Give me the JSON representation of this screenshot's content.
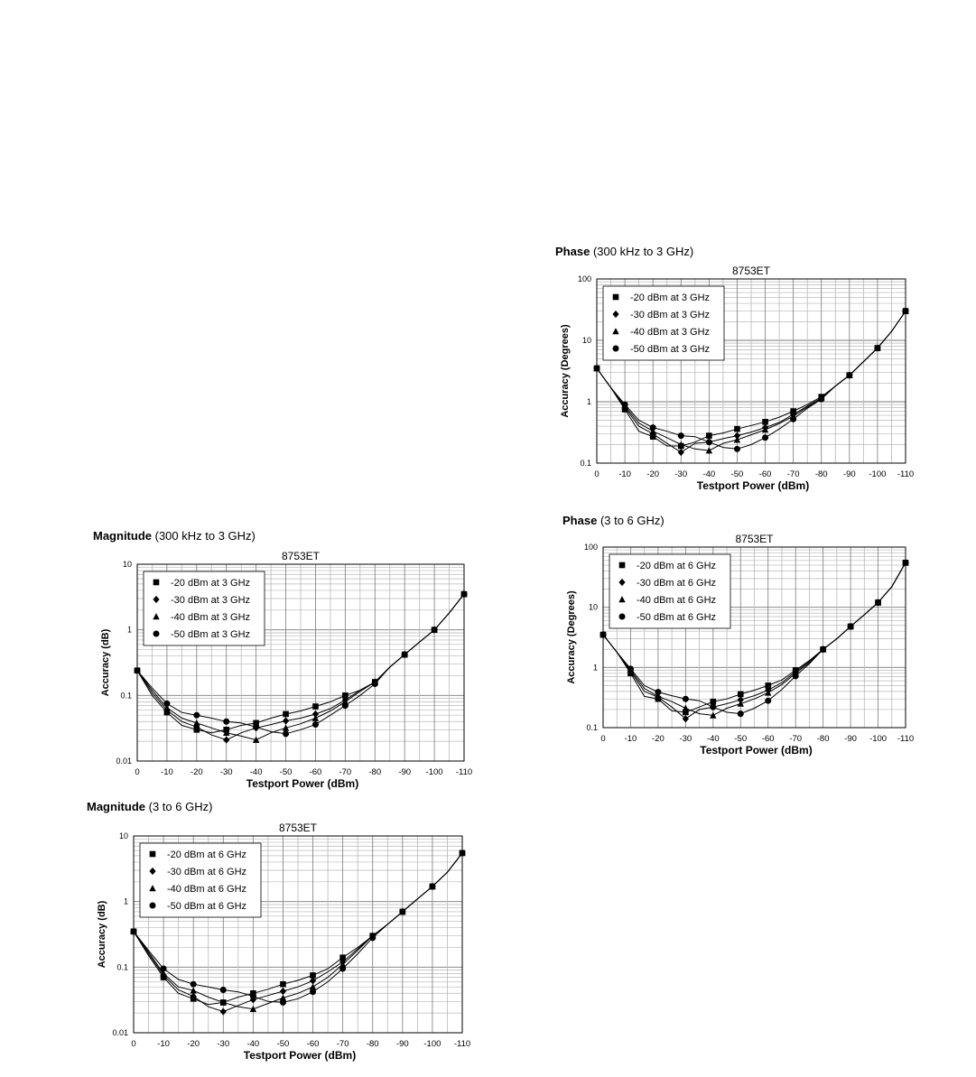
{
  "colors": {
    "ink": "#000000",
    "grid": "#7a7a7a",
    "minor_grid": "#b8b8b8",
    "legend_bg": "#ffffff"
  },
  "chart_data": [
    {
      "id": "phase-3ghz",
      "type": "line",
      "heading_bold": "Phase",
      "heading_rest": "(300 kHz to 3 GHz)",
      "title": "8753ET",
      "xlabel": "Testport Power (dBm)",
      "ylabel": "Accuracy (Degrees)",
      "y_scale": "log",
      "ylim": [
        0.1,
        100
      ],
      "y_ticks": [
        "100",
        "10",
        "1",
        "0.1"
      ],
      "xlim": [
        0,
        -110
      ],
      "x_ticks": [
        "0",
        "-10",
        "-20",
        "-30",
        "-40",
        "-50",
        "-60",
        "-70",
        "-80",
        "-90",
        "-100",
        "-110"
      ],
      "grid": true,
      "legend_position": "top-left",
      "series": [
        {
          "name": "-20 dBm at 3 GHz",
          "marker": "square",
          "x": [
            0,
            -5,
            -10,
            -15,
            -20,
            -25,
            -30,
            -35,
            -40,
            -45,
            -50,
            -55,
            -60,
            -65,
            -70,
            -75,
            -80,
            -85,
            -90,
            -95,
            -100,
            -105,
            -110
          ],
          "y": [
            3.5,
            1.7,
            0.75,
            0.33,
            0.27,
            0.19,
            0.19,
            0.22,
            0.28,
            0.31,
            0.36,
            0.41,
            0.47,
            0.56,
            0.7,
            0.9,
            1.2,
            1.8,
            2.7,
            4.5,
            7.5,
            14,
            30
          ]
        },
        {
          "name": "-30 dBm at 3 GHz",
          "marker": "diamond",
          "x": [
            0,
            -5,
            -10,
            -15,
            -20,
            -25,
            -30,
            -35,
            -40,
            -45,
            -50,
            -55,
            -60,
            -65,
            -70,
            -75,
            -80,
            -85,
            -90,
            -95,
            -100,
            -105,
            -110
          ],
          "y": [
            3.5,
            1.7,
            0.8,
            0.4,
            0.3,
            0.21,
            0.15,
            0.21,
            0.22,
            0.25,
            0.28,
            0.32,
            0.38,
            0.46,
            0.62,
            0.85,
            1.15,
            1.8,
            2.7,
            4.5,
            7.5,
            14,
            30
          ]
        },
        {
          "name": "-40 dBm at 3 GHz",
          "marker": "triangle",
          "x": [
            0,
            -5,
            -10,
            -15,
            -20,
            -25,
            -30,
            -35,
            -40,
            -45,
            -50,
            -55,
            -60,
            -65,
            -70,
            -75,
            -80,
            -85,
            -90,
            -95,
            -100,
            -105,
            -110
          ],
          "y": [
            3.5,
            1.7,
            0.85,
            0.45,
            0.33,
            0.26,
            0.2,
            0.17,
            0.16,
            0.21,
            0.24,
            0.29,
            0.35,
            0.44,
            0.58,
            0.82,
            1.15,
            1.8,
            2.7,
            4.5,
            7.5,
            14,
            30
          ]
        },
        {
          "name": "-50 dBm at 3 GHz",
          "marker": "circle",
          "x": [
            0,
            -5,
            -10,
            -15,
            -20,
            -25,
            -30,
            -35,
            -40,
            -45,
            -50,
            -55,
            -60,
            -65,
            -70,
            -75,
            -80,
            -85,
            -90,
            -95,
            -100,
            -105,
            -110
          ],
          "y": [
            3.5,
            1.7,
            0.9,
            0.5,
            0.38,
            0.33,
            0.28,
            0.27,
            0.22,
            0.18,
            0.17,
            0.2,
            0.26,
            0.36,
            0.52,
            0.78,
            1.1,
            1.8,
            2.7,
            4.5,
            7.5,
            14,
            30
          ]
        }
      ]
    },
    {
      "id": "phase-6ghz",
      "type": "line",
      "heading_bold": "Phase",
      "heading_rest": "(3 to 6 GHz)",
      "title": "8753ET",
      "xlabel": "Testport Power (dBm)",
      "ylabel": "Accuracy (Degrees)",
      "y_scale": "log",
      "ylim": [
        0.1,
        100
      ],
      "y_ticks": [
        "100",
        "10",
        "1",
        "0.1"
      ],
      "xlim": [
        0,
        -110
      ],
      "x_ticks": [
        "0",
        "-10",
        "-20",
        "-30",
        "-40",
        "-50",
        "-60",
        "-70",
        "-80",
        "-90",
        "-100",
        "-110"
      ],
      "grid": true,
      "legend_position": "top-left",
      "series": [
        {
          "name": "-20 dBm at 6 GHz",
          "marker": "square",
          "x": [
            0,
            -5,
            -10,
            -15,
            -20,
            -25,
            -30,
            -35,
            -40,
            -45,
            -50,
            -55,
            -60,
            -65,
            -70,
            -75,
            -80,
            -85,
            -90,
            -95,
            -100,
            -105,
            -110
          ],
          "y": [
            3.5,
            1.8,
            0.8,
            0.33,
            0.3,
            0.19,
            0.18,
            0.22,
            0.27,
            0.3,
            0.36,
            0.42,
            0.5,
            0.62,
            0.9,
            1.3,
            2.0,
            3.0,
            4.8,
            7.5,
            12,
            22,
            55
          ]
        },
        {
          "name": "-30 dBm at 6 GHz",
          "marker": "diamond",
          "x": [
            0,
            -5,
            -10,
            -15,
            -20,
            -25,
            -30,
            -35,
            -40,
            -45,
            -50,
            -55,
            -60,
            -65,
            -70,
            -75,
            -80,
            -85,
            -90,
            -95,
            -100,
            -105,
            -110
          ],
          "y": [
            3.5,
            1.8,
            0.85,
            0.4,
            0.32,
            0.22,
            0.14,
            0.2,
            0.22,
            0.25,
            0.29,
            0.34,
            0.42,
            0.56,
            0.85,
            1.25,
            2.0,
            3.0,
            4.8,
            7.5,
            12,
            22,
            55
          ]
        },
        {
          "name": "-40 dBm at 6 GHz",
          "marker": "triangle",
          "x": [
            0,
            -5,
            -10,
            -15,
            -20,
            -25,
            -30,
            -35,
            -40,
            -45,
            -50,
            -55,
            -60,
            -65,
            -70,
            -75,
            -80,
            -85,
            -90,
            -95,
            -100,
            -105,
            -110
          ],
          "y": [
            3.5,
            1.8,
            0.9,
            0.45,
            0.33,
            0.27,
            0.21,
            0.17,
            0.16,
            0.21,
            0.25,
            0.3,
            0.38,
            0.52,
            0.8,
            1.2,
            2.0,
            3.0,
            4.8,
            7.5,
            12,
            22,
            55
          ]
        },
        {
          "name": "-50 dBm at 6 GHz",
          "marker": "circle",
          "x": [
            0,
            -5,
            -10,
            -15,
            -20,
            -25,
            -30,
            -35,
            -40,
            -45,
            -50,
            -55,
            -60,
            -65,
            -70,
            -75,
            -80,
            -85,
            -90,
            -95,
            -100,
            -105,
            -110
          ],
          "y": [
            3.5,
            1.8,
            0.95,
            0.5,
            0.39,
            0.34,
            0.3,
            0.28,
            0.22,
            0.18,
            0.17,
            0.21,
            0.28,
            0.43,
            0.72,
            1.15,
            2.0,
            3.0,
            4.8,
            7.5,
            12,
            22,
            55
          ]
        }
      ]
    },
    {
      "id": "magnitude-3ghz",
      "type": "line",
      "heading_bold": "Magnitude",
      "heading_rest": "(300 kHz to 3 GHz)",
      "title": "8753ET",
      "xlabel": "Testport Power (dBm)",
      "ylabel": "Accuracy (dB)",
      "y_scale": "log",
      "ylim": [
        0.01,
        10
      ],
      "y_ticks": [
        "10",
        "1",
        "0.1",
        "0.01"
      ],
      "xlim": [
        0,
        -110
      ],
      "x_ticks": [
        "0",
        "-10",
        "-20",
        "-30",
        "-40",
        "-50",
        "-60",
        "-70",
        "-80",
        "-90",
        "-100",
        "-110"
      ],
      "grid": true,
      "legend_position": "top-left",
      "series": [
        {
          "name": "-20 dBm at 3 GHz",
          "marker": "square",
          "x": [
            0,
            -5,
            -10,
            -15,
            -20,
            -25,
            -30,
            -35,
            -40,
            -45,
            -50,
            -55,
            -60,
            -65,
            -70,
            -75,
            -80,
            -85,
            -90,
            -95,
            -100,
            -105,
            -110
          ],
          "y": [
            0.24,
            0.1,
            0.055,
            0.035,
            0.03,
            0.027,
            0.03,
            0.035,
            0.038,
            0.045,
            0.052,
            0.058,
            0.068,
            0.08,
            0.1,
            0.12,
            0.16,
            0.27,
            0.42,
            0.65,
            1.0,
            1.8,
            3.5
          ]
        },
        {
          "name": "-30 dBm at 3 GHz",
          "marker": "diamond",
          "x": [
            0,
            -5,
            -10,
            -15,
            -20,
            -25,
            -30,
            -35,
            -40,
            -45,
            -50,
            -55,
            -60,
            -65,
            -70,
            -75,
            -80,
            -85,
            -90,
            -95,
            -100,
            -105,
            -110
          ],
          "y": [
            0.24,
            0.11,
            0.06,
            0.04,
            0.033,
            0.025,
            0.021,
            0.027,
            0.032,
            0.036,
            0.041,
            0.045,
            0.052,
            0.063,
            0.085,
            0.12,
            0.16,
            0.27,
            0.42,
            0.65,
            1.0,
            1.8,
            3.5
          ]
        },
        {
          "name": "-40 dBm at 3 GHz",
          "marker": "triangle",
          "x": [
            0,
            -5,
            -10,
            -15,
            -20,
            -25,
            -30,
            -35,
            -40,
            -45,
            -50,
            -55,
            -60,
            -65,
            -70,
            -75,
            -80,
            -85,
            -90,
            -95,
            -100,
            -105,
            -110
          ],
          "y": [
            0.24,
            0.12,
            0.065,
            0.045,
            0.038,
            0.032,
            0.027,
            0.024,
            0.021,
            0.027,
            0.032,
            0.037,
            0.045,
            0.058,
            0.08,
            0.115,
            0.16,
            0.27,
            0.42,
            0.65,
            1.0,
            1.8,
            3.5
          ]
        },
        {
          "name": "-50 dBm at 3 GHz",
          "marker": "circle",
          "x": [
            0,
            -5,
            -10,
            -15,
            -20,
            -25,
            -30,
            -35,
            -40,
            -45,
            -50,
            -55,
            -60,
            -65,
            -70,
            -75,
            -80,
            -85,
            -90,
            -95,
            -100,
            -105,
            -110
          ],
          "y": [
            0.24,
            0.13,
            0.075,
            0.055,
            0.05,
            0.045,
            0.04,
            0.038,
            0.033,
            0.028,
            0.026,
            0.03,
            0.036,
            0.05,
            0.07,
            0.1,
            0.15,
            0.27,
            0.42,
            0.65,
            1.0,
            1.8,
            3.5
          ]
        }
      ]
    },
    {
      "id": "magnitude-6ghz",
      "type": "line",
      "heading_bold": "Magnitude",
      "heading_rest": "(3 to 6 GHz)",
      "title": "8753ET",
      "xlabel": "Testport Power (dBm)",
      "ylabel": "Accuracy (dB)",
      "y_scale": "log",
      "ylim": [
        0.01,
        10
      ],
      "y_ticks": [
        "10",
        "1",
        "0.1",
        "0.01"
      ],
      "xlim": [
        0,
        -110
      ],
      "x_ticks": [
        "0",
        "-10",
        "-20",
        "-30",
        "-40",
        "-50",
        "-60",
        "-70",
        "-80",
        "-90",
        "-100",
        "-110"
      ],
      "grid": true,
      "legend_position": "top-left",
      "series": [
        {
          "name": "-20 dBm at 6 GHz",
          "marker": "square",
          "x": [
            0,
            -5,
            -10,
            -15,
            -20,
            -25,
            -30,
            -35,
            -40,
            -45,
            -50,
            -55,
            -60,
            -65,
            -70,
            -75,
            -80,
            -85,
            -90,
            -95,
            -100,
            -105,
            -110
          ],
          "y": [
            0.35,
            0.15,
            0.07,
            0.04,
            0.033,
            0.027,
            0.029,
            0.035,
            0.04,
            0.046,
            0.055,
            0.063,
            0.075,
            0.095,
            0.14,
            0.2,
            0.3,
            0.45,
            0.7,
            1.1,
            1.7,
            2.8,
            5.5
          ]
        },
        {
          "name": "-30 dBm at 6 GHz",
          "marker": "diamond",
          "x": [
            0,
            -5,
            -10,
            -15,
            -20,
            -25,
            -30,
            -35,
            -40,
            -45,
            -50,
            -55,
            -60,
            -65,
            -70,
            -75,
            -80,
            -85,
            -90,
            -95,
            -100,
            -105,
            -110
          ],
          "y": [
            0.35,
            0.16,
            0.075,
            0.045,
            0.036,
            0.025,
            0.021,
            0.026,
            0.032,
            0.037,
            0.043,
            0.05,
            0.062,
            0.085,
            0.12,
            0.19,
            0.3,
            0.45,
            0.7,
            1.1,
            1.7,
            2.8,
            5.5
          ]
        },
        {
          "name": "-40 dBm at 6 GHz",
          "marker": "triangle",
          "x": [
            0,
            -5,
            -10,
            -15,
            -20,
            -25,
            -30,
            -35,
            -40,
            -45,
            -50,
            -55,
            -60,
            -65,
            -70,
            -75,
            -80,
            -85,
            -90,
            -95,
            -100,
            -105,
            -110
          ],
          "y": [
            0.35,
            0.17,
            0.08,
            0.05,
            0.044,
            0.035,
            0.029,
            0.025,
            0.023,
            0.028,
            0.034,
            0.04,
            0.05,
            0.07,
            0.11,
            0.18,
            0.3,
            0.45,
            0.7,
            1.1,
            1.7,
            2.8,
            5.5
          ]
        },
        {
          "name": "-50 dBm at 6 GHz",
          "marker": "circle",
          "x": [
            0,
            -5,
            -10,
            -15,
            -20,
            -25,
            -30,
            -35,
            -40,
            -45,
            -50,
            -55,
            -60,
            -65,
            -70,
            -75,
            -80,
            -85,
            -90,
            -95,
            -100,
            -105,
            -110
          ],
          "y": [
            0.35,
            0.18,
            0.095,
            0.065,
            0.055,
            0.05,
            0.045,
            0.042,
            0.036,
            0.03,
            0.029,
            0.033,
            0.042,
            0.06,
            0.095,
            0.16,
            0.28,
            0.45,
            0.7,
            1.1,
            1.7,
            2.8,
            5.5
          ]
        }
      ]
    }
  ]
}
